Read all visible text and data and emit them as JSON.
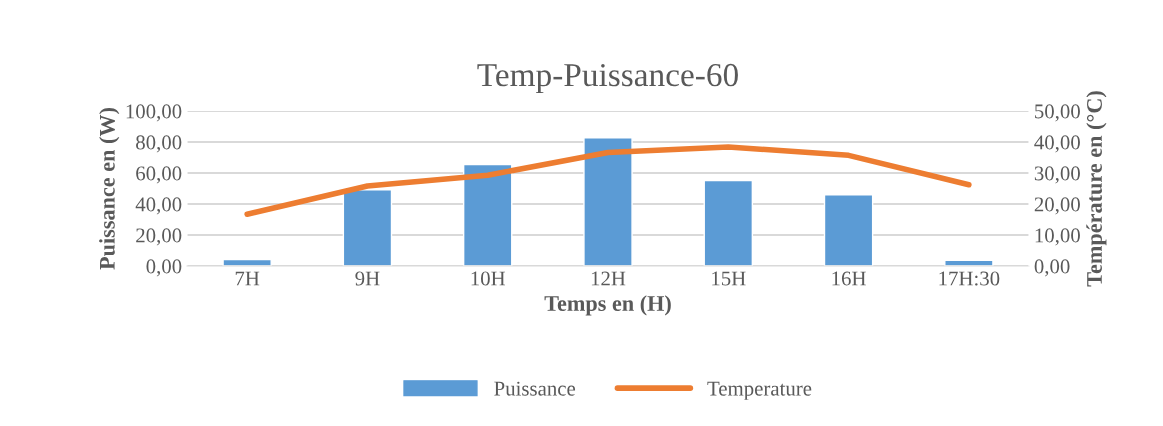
{
  "chart_data": {
    "type": "bar",
    "title": "Temp-Puissance-60",
    "xlabel": "Temps en (H)",
    "ylabel": "Puissance en (W)",
    "y2label": "Température en (°C)",
    "categories": [
      "7H",
      "9H",
      "10H",
      "12H",
      "15H",
      "16H",
      "17H:30"
    ],
    "series": [
      {
        "name": "Puissance",
        "color": "#5b9bd5",
        "values": [
          4.1,
          49.2,
          65.4,
          82.7,
          55.1,
          46.0,
          3.7
        ]
      },
      {
        "name": "Temperature",
        "type": "line",
        "axis": "y2",
        "color": "#ed7d31",
        "values": [
          16.7,
          25.8,
          29.3,
          36.6,
          38.4,
          35.7,
          26.2
        ]
      }
    ],
    "ylim": [
      0,
      100
    ],
    "yticks": [
      {
        "value": 0,
        "label": "0,00"
      },
      {
        "value": 20,
        "label": "20,00"
      },
      {
        "value": 40,
        "label": "40,00"
      },
      {
        "value": 60,
        "label": "60,00"
      },
      {
        "value": 80,
        "label": "80,00"
      },
      {
        "value": 100,
        "label": "100,00"
      }
    ],
    "y2lim": [
      0,
      50
    ],
    "y2ticks": [
      {
        "value": 0,
        "label": "0,00"
      },
      {
        "value": 10,
        "label": "10,00"
      },
      {
        "value": 20,
        "label": "20,00"
      },
      {
        "value": 30,
        "label": "30,00"
      },
      {
        "value": 40,
        "label": "40,00"
      },
      {
        "value": 50,
        "label": "50,00"
      }
    ],
    "grid": "y",
    "legend": "bottom",
    "marker": "none",
    "line_style": "solid"
  }
}
